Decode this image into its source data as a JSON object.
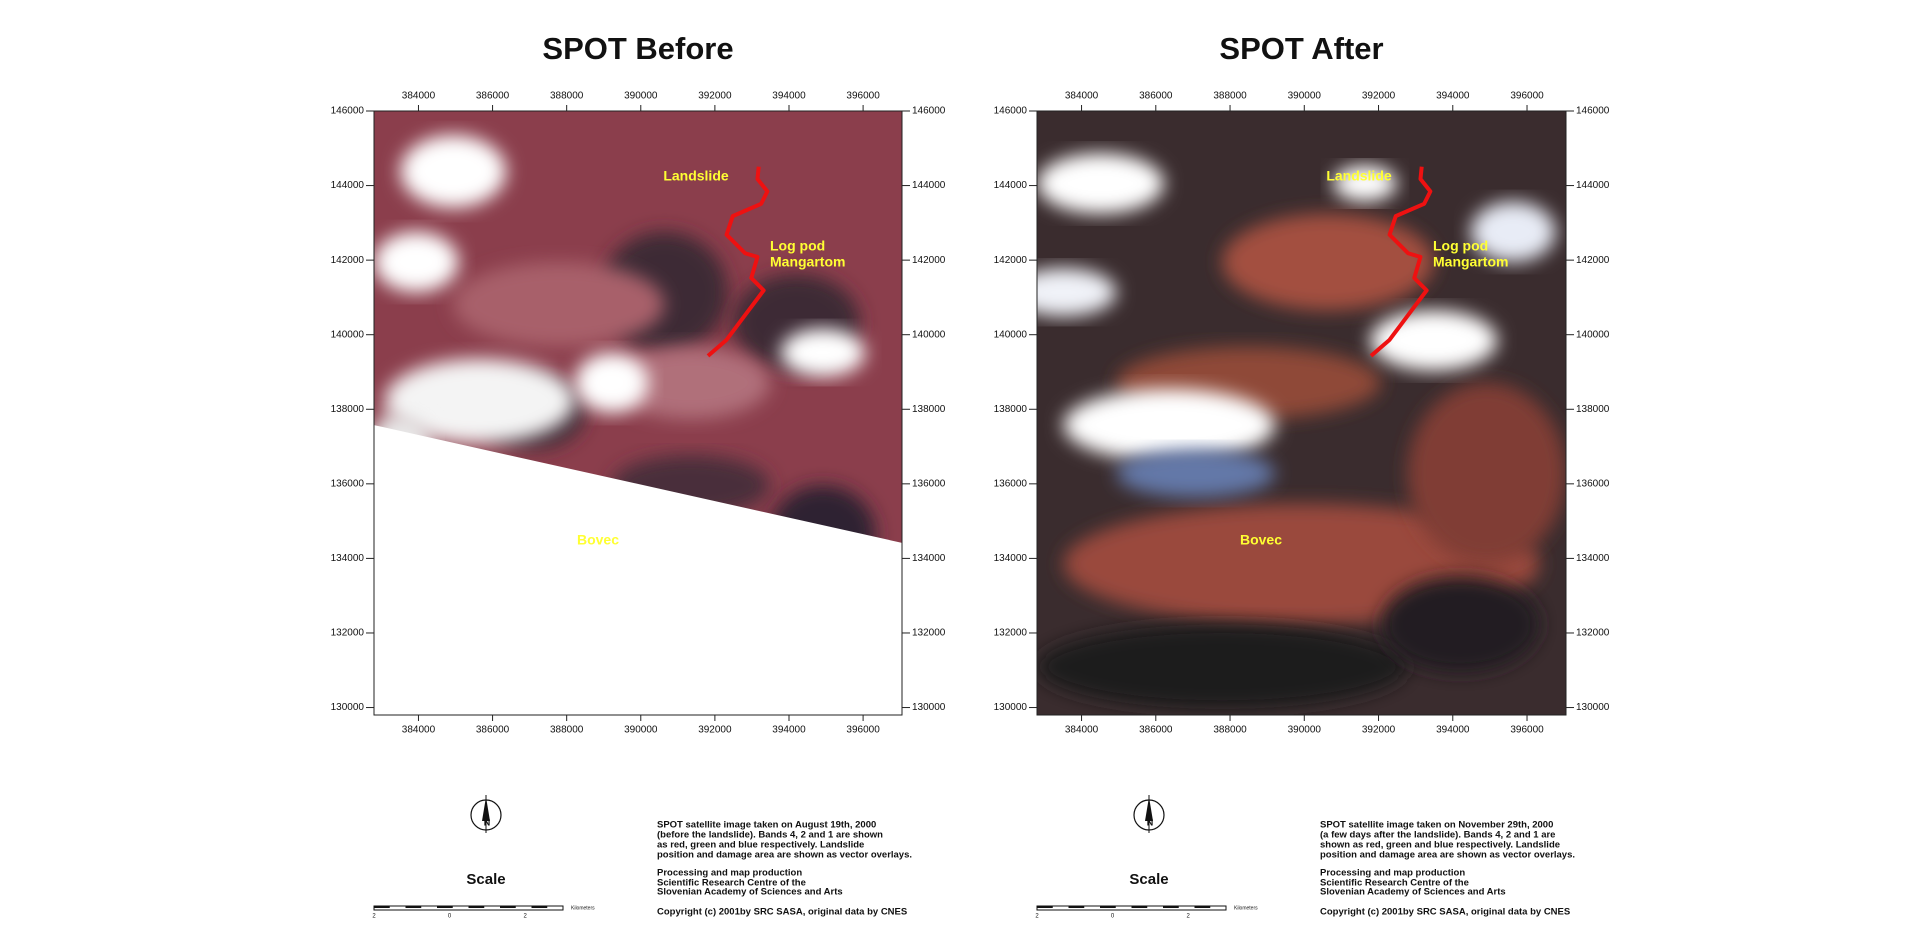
{
  "maps": [
    {
      "title": "SPOT Before",
      "xlim": [
        382800,
        397050
      ],
      "ylim": [
        129800,
        146000
      ],
      "xticks": [
        384000,
        386000,
        388000,
        390000,
        392000,
        394000,
        396000
      ],
      "yticks": [
        130000,
        132000,
        134000,
        136000,
        138000,
        140000,
        142000,
        144000,
        146000
      ],
      "places": [
        "Landslide",
        "Log pod",
        "Mangartom",
        "Bovec"
      ],
      "north": "N",
      "scale_title": "Scale",
      "scale_ticks": [
        "2",
        "0",
        "2"
      ],
      "scale_unit": "Kilometers",
      "caption": [
        "SPOT satellite image taken on August 19th, 2000",
        "(before the landslide). Bands 4, 2 and 1 are shown",
        "as red, green and blue respectively. Landslide",
        "position and damage area are shown as vector overlays.",
        "Processing and map production",
        "Scientific Research Centre of the",
        "Slovenian Academy of Sciences and Arts",
        "Copyright (c) 2001by SRC SASA, original data by CNES"
      ]
    },
    {
      "title": "SPOT After",
      "xlim": [
        382800,
        397050
      ],
      "ylim": [
        129800,
        146000
      ],
      "xticks": [
        384000,
        386000,
        388000,
        390000,
        392000,
        394000,
        396000
      ],
      "yticks": [
        130000,
        132000,
        134000,
        136000,
        138000,
        140000,
        142000,
        144000,
        146000
      ],
      "places": [
        "Landslide",
        "Log pod",
        "Mangartom",
        "Bovec"
      ],
      "north": "N",
      "scale_title": "Scale",
      "scale_ticks": [
        "2",
        "0",
        "2"
      ],
      "scale_unit": "Kilometers",
      "caption": [
        "SPOT satellite image taken on November 29th, 2000",
        "(a few days after the landslide). Bands 4, 2 and 1 are",
        "shown as red, green and blue respectively. Landslide",
        "position and damage area are shown as vector overlays.",
        "Processing and map production",
        "Scientific Research Centre of the",
        "Slovenian Academy of Sciences and Arts",
        "Copyright (c) 2001by SRC SASA, original data by CNES"
      ]
    }
  ]
}
